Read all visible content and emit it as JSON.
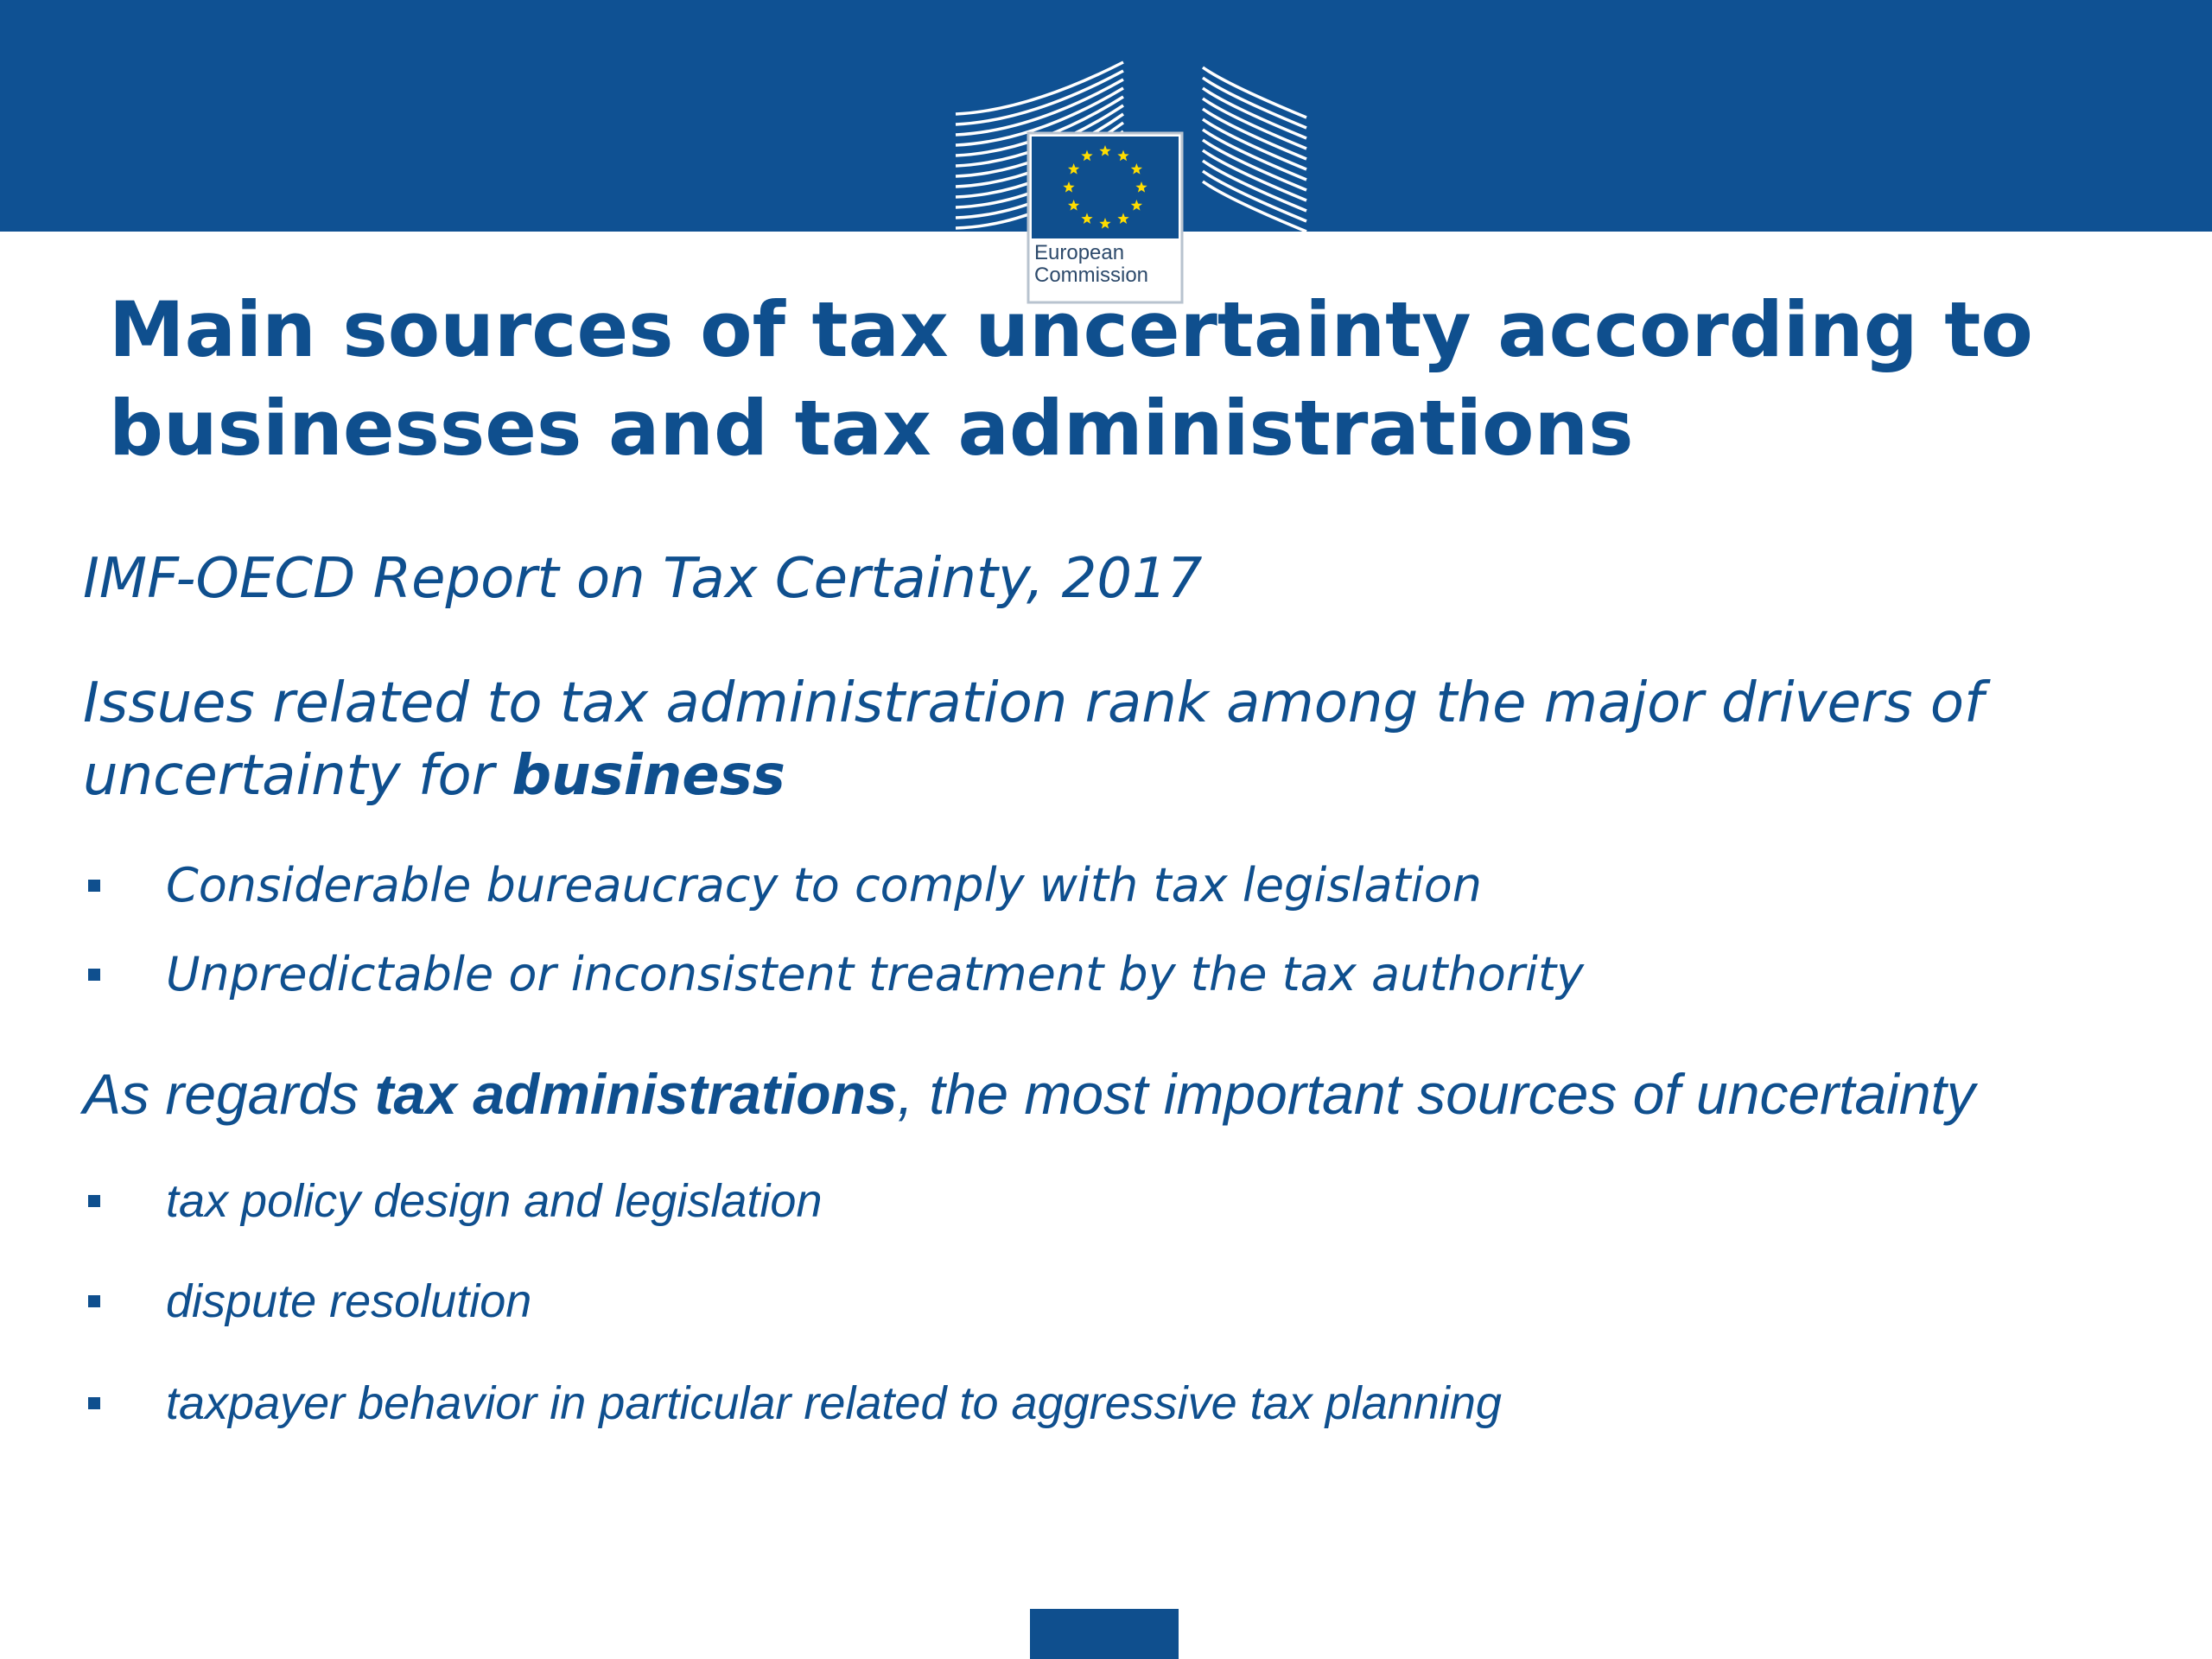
{
  "logo": {
    "line1": "European",
    "line2": "Commission"
  },
  "title": "Main sources of tax uncertainty according to businesses and tax administrations",
  "report": "IMF-OECD Report on Tax Certainty, 2017",
  "business_intro": {
    "line1": "Issues related to tax administration rank among the major drivers of",
    "line2_prefix": "uncertainty for ",
    "line2_bold": "business"
  },
  "business_bullets": [
    "Considerable bureaucracy to comply with tax legislation",
    "Unpredictable or inconsistent treatment by the tax authority"
  ],
  "admin_intro": {
    "prefix": "As regards ",
    "bold": "tax administrations",
    "suffix": ", the most important sources of uncertainty"
  },
  "admin_bullets": [
    "tax policy design and legislation",
    "dispute resolution",
    "taxpayer behavior in particular related to aggressive tax planning"
  ],
  "colors": {
    "brand_blue": "#0f5193",
    "text_blue": "#0f4f8e",
    "star_yellow": "#ffdd00"
  },
  "icons": [
    "eu-flag-icon",
    "berlaymont-building-icon",
    "square-bullet-icon"
  ]
}
